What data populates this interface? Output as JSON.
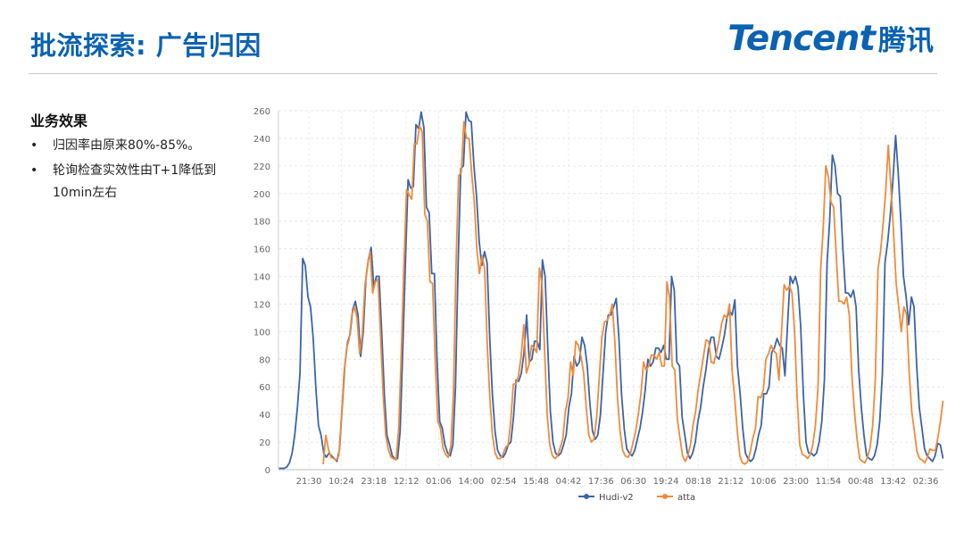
{
  "header": {
    "title": "批流探索: 广告归因",
    "brand_latin": "Tencent",
    "brand_cjk": "腾讯",
    "brand_color": "#0a62b0"
  },
  "content": {
    "heading": "业务效果",
    "bullets": [
      {
        "marker": "•",
        "text": "归因率由原来80%-85%。"
      },
      {
        "marker": "•",
        "text": "轮询检查实效性由T+1降低到10min左右"
      }
    ]
  },
  "chart_data": {
    "type": "line",
    "x_tick_labels": [
      "21:30",
      "10:24",
      "23:18",
      "12:12",
      "01:06",
      "14:00",
      "02:54",
      "15:48",
      "04:42",
      "17:36",
      "06:30",
      "19:24",
      "08:18",
      "21:12",
      "10:06",
      "23:00",
      "11:54",
      "00:48",
      "13:42",
      "02:36"
    ],
    "ylim": [
      0,
      260
    ],
    "y_ticks": [
      0,
      20,
      40,
      60,
      80,
      100,
      120,
      140,
      160,
      180,
      200,
      220,
      240,
      260
    ],
    "grid": true,
    "legend_position": "bottom-center",
    "series": [
      {
        "name": "Hudi-v2",
        "color": "#3a64a8",
        "values": [
          1,
          1,
          1,
          2,
          5,
          12,
          25,
          45,
          70,
          153,
          148,
          125,
          118,
          95,
          60,
          32,
          25,
          12,
          9,
          12,
          10,
          8,
          6,
          15,
          45,
          75,
          92,
          98,
          116,
          122,
          112,
          82,
          100,
          138,
          153,
          161,
          132,
          140,
          140,
          100,
          55,
          25,
          18,
          10,
          8,
          8,
          28,
          88,
          150,
          210,
          204,
          205,
          250,
          247,
          259,
          248,
          190,
          186,
          142,
          142,
          80,
          35,
          30,
          18,
          12,
          10,
          18,
          60,
          150,
          218,
          220,
          259,
          253,
          252,
          220,
          198,
          165,
          148,
          158,
          150,
          95,
          55,
          28,
          14,
          10,
          9,
          12,
          18,
          20,
          38,
          65,
          64,
          70,
          85,
          112,
          78,
          80,
          93,
          93,
          87,
          152,
          140,
          90,
          42,
          20,
          12,
          10,
          12,
          18,
          25,
          45,
          55,
          82,
          75,
          78,
          96,
          90,
          75,
          48,
          28,
          22,
          25,
          40,
          70,
          100,
          112,
          112,
          118,
          124,
          95,
          55,
          30,
          15,
          12,
          10,
          14,
          22,
          30,
          42,
          58,
          80,
          75,
          78,
          88,
          88,
          85,
          90,
          80,
          80,
          140,
          130,
          78,
          75,
          38,
          25,
          12,
          8,
          12,
          20,
          35,
          45,
          60,
          72,
          87,
          96,
          96,
          82,
          80,
          88,
          97,
          110,
          115,
          112,
          123,
          75,
          55,
          30,
          12,
          8,
          6,
          8,
          15,
          25,
          32,
          55,
          55,
          60,
          85,
          88,
          95,
          90,
          88,
          68,
          105,
          140,
          135,
          140,
          132,
          103,
          55,
          20,
          12,
          12,
          10,
          12,
          20,
          35,
          65,
          150,
          180,
          228,
          220,
          200,
          198,
          160,
          128,
          128,
          125,
          130,
          118,
          72,
          45,
          25,
          10,
          8,
          7,
          10,
          18,
          35,
          70,
          150,
          165,
          185,
          210,
          242,
          215,
          180,
          140,
          125,
          105,
          125,
          118,
          75,
          45,
          30,
          15,
          10,
          8,
          6,
          10,
          19,
          18,
          8
        ]
      },
      {
        "name": "atta",
        "color": "#ef8b3b",
        "values": [
          null,
          null,
          null,
          null,
          null,
          null,
          null,
          null,
          null,
          null,
          null,
          null,
          null,
          null,
          null,
          null,
          null,
          4,
          25,
          15,
          9,
          8,
          7,
          10,
          38,
          70,
          88,
          95,
          112,
          118,
          110,
          84,
          98,
          133,
          148,
          158,
          128,
          136,
          138,
          98,
          55,
          25,
          15,
          9,
          8,
          7,
          30,
          85,
          148,
          203,
          199,
          196,
          236,
          236,
          249,
          245,
          185,
          180,
          136,
          135,
          78,
          35,
          30,
          16,
          11,
          9,
          17,
          55,
          148,
          213,
          215,
          252,
          240,
          240,
          215,
          195,
          160,
          142,
          155,
          145,
          90,
          52,
          25,
          12,
          8,
          8,
          11,
          16,
          18,
          35,
          62,
          62,
          68,
          82,
          105,
          70,
          76,
          90,
          88,
          85,
          146,
          135,
          87,
          40,
          18,
          10,
          8,
          10,
          16,
          22,
          42,
          52,
          78,
          68,
          93,
          90,
          82,
          70,
          45,
          25,
          20,
          22,
          38,
          67,
          96,
          107,
          108,
          112,
          120,
          92,
          52,
          28,
          14,
          10,
          9,
          12,
          20,
          28,
          40,
          55,
          78,
          72,
          75,
          83,
          83,
          80,
          85,
          75,
          75,
          136,
          125,
          75,
          72,
          36,
          23,
          10,
          6,
          10,
          18,
          32,
          42,
          58,
          70,
          82,
          94,
          93,
          78,
          77,
          85,
          94,
          106,
          112,
          110,
          120,
          72,
          52,
          28,
          10,
          5,
          4,
          6,
          13,
          23,
          30,
          53,
          52,
          58,
          80,
          84,
          90,
          86,
          84,
          65,
          100,
          134,
          130,
          133,
          128,
          100,
          52,
          18,
          11,
          10,
          8,
          11,
          18,
          32,
          60,
          145,
          175,
          220,
          212,
          194,
          190,
          155,
          122,
          122,
          120,
          125,
          112,
          68,
          42,
          22,
          8,
          6,
          5,
          9,
          16,
          32,
          65,
          145,
          158,
          178,
          202,
          235,
          205,
          172,
          135,
          118,
          100,
          118,
          112,
          70,
          42,
          28,
          13,
          8,
          7,
          5,
          9,
          15,
          14,
          14,
          23,
          35,
          50
        ]
      }
    ]
  }
}
